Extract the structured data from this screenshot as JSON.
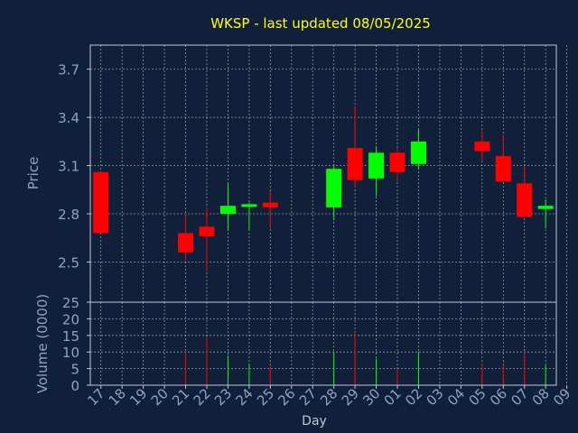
{
  "colors": {
    "background": "#10203a",
    "title": "#ffff00",
    "axis_text": "#8aa4c8",
    "frame": "#c0c8d8",
    "grid": "#c0c8d8",
    "up": "#00ff00",
    "down": "#ff0000"
  },
  "chart_data": [
    {
      "type": "candlestick",
      "title": "WKSP - last updated 08/05/2025",
      "ylabel": "Price",
      "ylim": [
        2.25,
        3.85
      ],
      "yticks": [
        "2.5",
        "2.8",
        "3.1",
        "3.4",
        "3.7"
      ],
      "ytick_values": [
        2.5,
        2.8,
        3.1,
        3.4,
        3.7
      ],
      "grid": true,
      "candles": [
        {
          "day": "17",
          "open": 3.06,
          "high": 3.06,
          "low": 2.68,
          "close": 2.68
        },
        {
          "day": "21",
          "open": 2.68,
          "high": 2.79,
          "low": 2.51,
          "close": 2.56
        },
        {
          "day": "22",
          "open": 2.72,
          "high": 2.84,
          "low": 2.44,
          "close": 2.66
        },
        {
          "day": "23",
          "open": 2.8,
          "high": 2.99,
          "low": 2.7,
          "close": 2.85
        },
        {
          "day": "24",
          "open": 2.85,
          "high": 2.87,
          "low": 2.7,
          "close": 2.86
        },
        {
          "day": "25",
          "open": 2.87,
          "high": 2.94,
          "low": 2.71,
          "close": 2.84
        },
        {
          "day": "28",
          "open": 2.84,
          "high": 3.11,
          "low": 2.76,
          "close": 3.08
        },
        {
          "day": "29",
          "open": 3.21,
          "high": 3.47,
          "low": 2.96,
          "close": 3.01
        },
        {
          "day": "30",
          "open": 3.02,
          "high": 3.22,
          "low": 2.91,
          "close": 3.18
        },
        {
          "day": "01",
          "open": 3.18,
          "high": 3.21,
          "low": 3.0,
          "close": 3.06
        },
        {
          "day": "02",
          "open": 3.11,
          "high": 3.33,
          "low": 3.08,
          "close": 3.25
        },
        {
          "day": "05",
          "open": 3.25,
          "high": 3.32,
          "low": 3.13,
          "close": 3.19
        },
        {
          "day": "06",
          "open": 3.16,
          "high": 3.29,
          "low": 3.0,
          "close": 3.0
        },
        {
          "day": "07",
          "open": 2.99,
          "high": 3.1,
          "low": 2.78,
          "close": 2.78
        },
        {
          "day": "08",
          "open": 2.83,
          "high": 2.89,
          "low": 2.71,
          "close": 2.85
        }
      ]
    },
    {
      "type": "bar",
      "ylabel": "Volume (0000)",
      "xlabel": "Day",
      "ylim": [
        0,
        25
      ],
      "yticks": [
        "0",
        "5",
        "10",
        "15",
        "20",
        "25"
      ],
      "ytick_values": [
        0,
        5,
        10,
        15,
        20,
        25
      ],
      "categories": [
        "17",
        "18",
        "19",
        "20",
        "21",
        "22",
        "23",
        "24",
        "25",
        "26",
        "27",
        "28",
        "29",
        "30",
        "01",
        "02",
        "03",
        "04",
        "05",
        "06",
        "07",
        "08",
        "09"
      ],
      "values": [
        0,
        0,
        0,
        0,
        10,
        14.5,
        9,
        6.5,
        6,
        0,
        0,
        10,
        16,
        8,
        5,
        10,
        0,
        0,
        6.5,
        6,
        10,
        6,
        0
      ],
      "directions": [
        "down",
        "",
        "",
        "",
        "down",
        "down",
        "up",
        "up",
        "down",
        "",
        "",
        "up",
        "down",
        "up",
        "down",
        "up",
        "",
        "",
        "down",
        "down",
        "down",
        "up",
        ""
      ]
    }
  ]
}
